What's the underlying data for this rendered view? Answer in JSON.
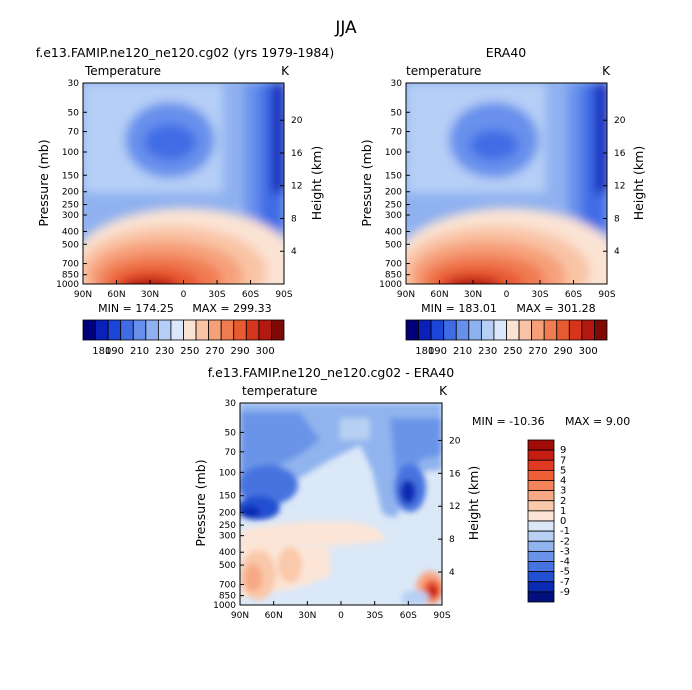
{
  "figure": {
    "season": "JJA"
  },
  "chart_data": [
    {
      "type": "heatmap",
      "title": "f.e13.FAMIP.ne120_ne120.cg02 (yrs 1979-1984)",
      "left_label": "Temperature",
      "units": "K",
      "xlabel": "",
      "ylabel": "Pressure (mb)",
      "y2label": "Height (km)",
      "x_ticks": [
        "90N",
        "60N",
        "30N",
        "0",
        "30S",
        "60S",
        "90S"
      ],
      "y_ticks": [
        "30",
        "50",
        "70",
        "100",
        "150",
        "200",
        "250",
        "300",
        "400",
        "500",
        "700",
        "850",
        "1000"
      ],
      "y2_ticks": [
        "20",
        "16",
        "12",
        "8",
        "4"
      ],
      "min_label": "MIN = 174.25",
      "max_label": "MAX = 299.33",
      "colorbar": {
        "levels": [
          "180",
          "190",
          "210",
          "230",
          "250",
          "270",
          "290",
          "300"
        ],
        "colors": [
          "#00007a",
          "#0a20b8",
          "#1c46d8",
          "#3f6ce5",
          "#6790ec",
          "#8fb1f0",
          "#b6cff6",
          "#dbe7fa",
          "#fbe3d4",
          "#f9c4a6",
          "#f6a07a",
          "#f07c52",
          "#e85a30",
          "#d6351b",
          "#b51810",
          "#7f0a05"
        ]
      }
    },
    {
      "type": "heatmap",
      "title": "ERA40",
      "left_label": "temperature",
      "units": "K",
      "ylabel": "Pressure (mb)",
      "y2label": "Height (km)",
      "x_ticks": [
        "90N",
        "60N",
        "30N",
        "0",
        "30S",
        "60S",
        "90S"
      ],
      "y_ticks": [
        "30",
        "50",
        "70",
        "100",
        "150",
        "200",
        "250",
        "300",
        "400",
        "500",
        "700",
        "850",
        "1000"
      ],
      "y2_ticks": [
        "20",
        "16",
        "12",
        "8",
        "4"
      ],
      "min_label": "MIN = 183.01",
      "max_label": "MAX = 301.28",
      "colorbar": {
        "levels": [
          "180",
          "190",
          "210",
          "230",
          "250",
          "270",
          "290",
          "300"
        ],
        "colors": [
          "#00007a",
          "#0a20b8",
          "#1c46d8",
          "#3f6ce5",
          "#6790ec",
          "#8fb1f0",
          "#b6cff6",
          "#dbe7fa",
          "#fbe3d4",
          "#f9c4a6",
          "#f6a07a",
          "#f07c52",
          "#e85a30",
          "#d6351b",
          "#b51810",
          "#7f0a05"
        ]
      }
    },
    {
      "type": "heatmap",
      "title": "f.e13.FAMIP.ne120_ne120.cg02 - ERA40",
      "left_label": "temperature",
      "units": "K",
      "ylabel": "Pressure (mb)",
      "y2label": "Height (km)",
      "x_ticks": [
        "90N",
        "60N",
        "30N",
        "0",
        "30S",
        "60S",
        "90S"
      ],
      "y_ticks": [
        "30",
        "50",
        "70",
        "100",
        "150",
        "200",
        "250",
        "300",
        "400",
        "500",
        "700",
        "850",
        "1000"
      ],
      "y2_ticks": [
        "20",
        "16",
        "12",
        "8",
        "4"
      ],
      "min_label": "MIN = -10.36",
      "max_label": "MAX =    9.00",
      "colorbar": {
        "levels": [
          "9",
          "7",
          "5",
          "4",
          "3",
          "2",
          "1",
          "0",
          "-1",
          "-2",
          "-3",
          "-4",
          "-5",
          "-7",
          "-9"
        ],
        "colors": [
          "#a10c06",
          "#c61d12",
          "#e23a20",
          "#ef5f36",
          "#f4845a",
          "#f7a985",
          "#fac8aa",
          "#fce5d6",
          "#dbe8f8",
          "#b7d0f3",
          "#91b4ee",
          "#6b94e8",
          "#4673e0",
          "#2350d2",
          "#0b2ab3",
          "#01107c"
        ]
      }
    }
  ]
}
